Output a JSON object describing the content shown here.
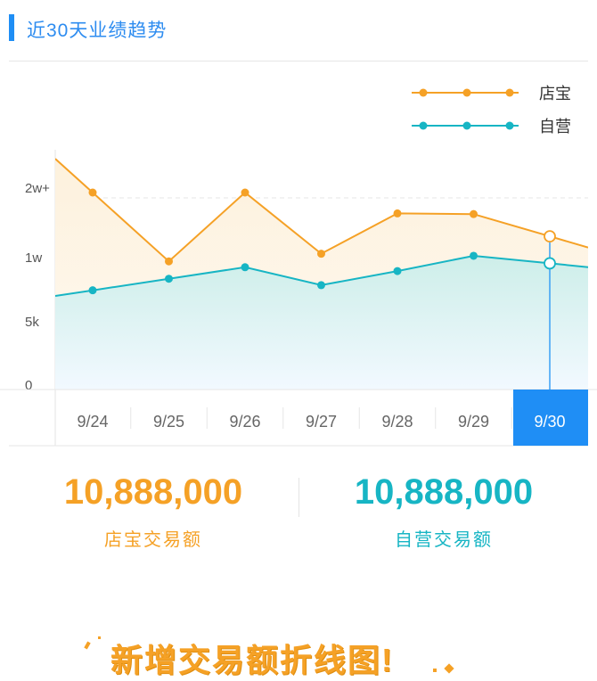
{
  "header": {
    "title": "近30天业绩趋势"
  },
  "colors": {
    "accent": "#1f8ef5",
    "dianbao": "#f5a126",
    "ziying": "#17b5c4",
    "active_tab": "#1f8ef5"
  },
  "chart_data": {
    "type": "area",
    "categories": [
      "9/24",
      "9/25",
      "9/26",
      "9/27",
      "9/28",
      "9/29",
      "9/30"
    ],
    "selected_category": "9/30",
    "y_tick_labels": [
      "0",
      "5k",
      "1w",
      "2w+"
    ],
    "legend_position": "top-right",
    "grid": "dashed horizontal",
    "series": [
      {
        "name": "店宝",
        "color": "#f5a126",
        "values": [
          20500,
          10100,
          22600,
          11200,
          17000,
          16900,
          13700
        ]
      },
      {
        "name": "自营",
        "color": "#17b5c4",
        "values": [
          7800,
          8700,
          9600,
          8200,
          9300,
          10900,
          9900
        ]
      }
    ]
  },
  "stats": {
    "dianbao": {
      "value": "10,888,000",
      "label": "店宝交易额"
    },
    "ziying": {
      "value": "10,888,000",
      "label": "自营交易额"
    }
  },
  "banner": {
    "text": "新增交易额折线图!"
  }
}
